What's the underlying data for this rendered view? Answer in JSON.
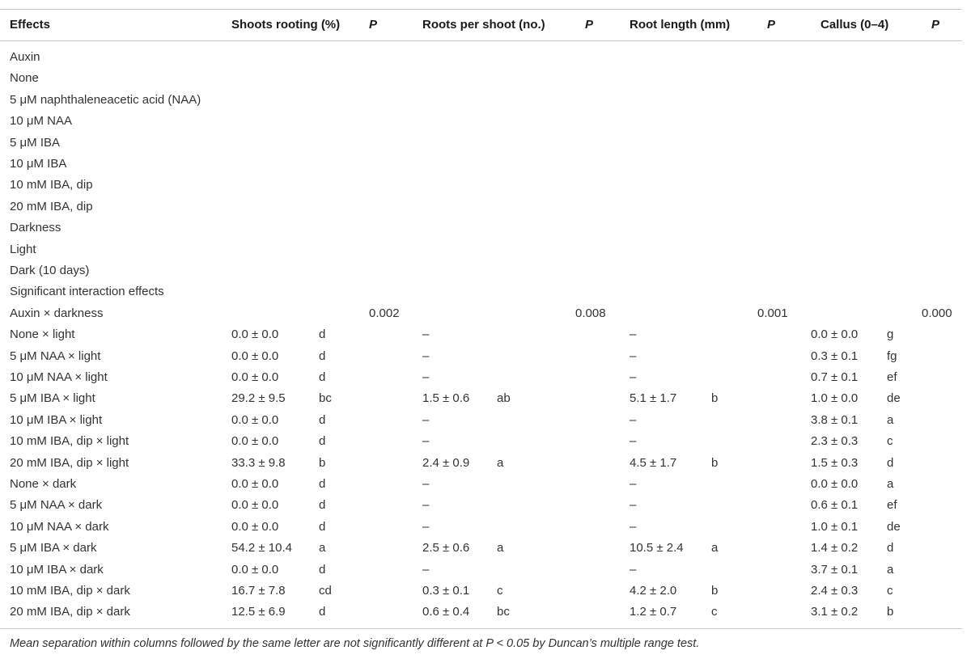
{
  "table": {
    "headers": {
      "effects": "Effects",
      "rooting": "Shoots rooting (%)",
      "p1": "P",
      "roots": "Roots per shoot (no.)",
      "p2": "P",
      "length": "Root length (mm)",
      "p3": "P",
      "callus": "Callus (0–4)",
      "p4": "P"
    },
    "rows": [
      {
        "label": "Auxin"
      },
      {
        "label": "None"
      },
      {
        "label": "5 μM naphthaleneacetic acid (NAA)"
      },
      {
        "label": "10 μM NAA"
      },
      {
        "label": "5 μM IBA"
      },
      {
        "label": "10 μM IBA"
      },
      {
        "label": "10 mM IBA, dip"
      },
      {
        "label": "20 mM IBA, dip"
      },
      {
        "label": "Darkness"
      },
      {
        "label": "Light"
      },
      {
        "label": "Dark (10 days)"
      },
      {
        "label": "Significant interaction effects"
      },
      {
        "label": "Auxin × darkness",
        "p1": "0.002",
        "p2": "0.008",
        "p3": "0.001",
        "p4": "0.000"
      },
      {
        "label": "None × light",
        "rooting": "0.0 ± 0.0",
        "rooting_sig": "d",
        "roots": "–",
        "length": "–",
        "callus": "0.0 ± 0.0",
        "callus_sig": "g"
      },
      {
        "label": "5 μM NAA × light",
        "rooting": "0.0 ± 0.0",
        "rooting_sig": "d",
        "roots": "–",
        "length": "–",
        "callus": "0.3 ± 0.1",
        "callus_sig": "fg"
      },
      {
        "label": "10 μM NAA × light",
        "rooting": "0.0 ± 0.0",
        "rooting_sig": "d",
        "roots": "–",
        "length": "–",
        "callus": "0.7 ± 0.1",
        "callus_sig": "ef"
      },
      {
        "label": "5 μM IBA × light",
        "rooting": "29.2 ± 9.5",
        "rooting_sig": "bc",
        "roots": "1.5 ± 0.6",
        "roots_sig": "ab",
        "length": "5.1 ± 1.7",
        "length_sig": "b",
        "callus": "1.0 ± 0.0",
        "callus_sig": "de"
      },
      {
        "label": "10 μM IBA × light",
        "rooting": "0.0 ± 0.0",
        "rooting_sig": "d",
        "roots": "–",
        "length": "–",
        "callus": "3.8 ± 0.1",
        "callus_sig": "a"
      },
      {
        "label": "10 mM IBA, dip × light",
        "rooting": "0.0 ± 0.0",
        "rooting_sig": "d",
        "roots": "–",
        "length": "–",
        "callus": "2.3 ± 0.3",
        "callus_sig": "c"
      },
      {
        "label": "20 mM IBA, dip × light",
        "rooting": "33.3 ± 9.8",
        "rooting_sig": "b",
        "roots": "2.4 ± 0.9",
        "roots_sig": "a",
        "length": "4.5 ± 1.7",
        "length_sig": "b",
        "callus": "1.5 ± 0.3",
        "callus_sig": "d"
      },
      {
        "label": "None × dark",
        "rooting": "0.0 ± 0.0",
        "rooting_sig": "d",
        "roots": "–",
        "length": "–",
        "callus": "0.0 ± 0.0",
        "callus_sig": "a"
      },
      {
        "label": "5 μM NAA × dark",
        "rooting": "0.0 ± 0.0",
        "rooting_sig": "d",
        "roots": "–",
        "length": "–",
        "callus": "0.6 ± 0.1",
        "callus_sig": "ef"
      },
      {
        "label": "10 μM NAA × dark",
        "rooting": "0.0 ± 0.0",
        "rooting_sig": "d",
        "roots": "–",
        "length": "–",
        "callus": "1.0 ± 0.1",
        "callus_sig": "de"
      },
      {
        "label": "5 μM IBA × dark",
        "rooting": "54.2 ± 10.4",
        "rooting_sig": "a",
        "roots": "2.5 ± 0.6",
        "roots_sig": "a",
        "length": "10.5 ± 2.4",
        "length_sig": "a",
        "callus": "1.4 ± 0.2",
        "callus_sig": "d"
      },
      {
        "label": "10 μM IBA × dark",
        "rooting": "0.0 ± 0.0",
        "rooting_sig": "d",
        "roots": "–",
        "length": "–",
        "callus": "3.7 ± 0.1",
        "callus_sig": "a"
      },
      {
        "label": "10 mM IBA, dip × dark",
        "rooting": "16.7 ± 7.8",
        "rooting_sig": "cd",
        "roots": "0.3 ± 0.1",
        "roots_sig": "c",
        "length": "4.2 ± 2.0",
        "length_sig": "b",
        "callus": "2.4 ± 0.3",
        "callus_sig": "c"
      },
      {
        "label": "20 mM IBA, dip × dark",
        "rooting": "12.5 ± 6.9",
        "rooting_sig": "d",
        "roots": "0.6 ± 0.4",
        "roots_sig": "bc",
        "length": "1.2 ± 0.7",
        "length_sig": "c",
        "callus": "3.1 ± 0.2",
        "callus_sig": "b"
      }
    ]
  },
  "footnote": "Mean separation within columns followed by the same letter are not significantly different at P < 0.05 by Duncan’s multiple range test."
}
